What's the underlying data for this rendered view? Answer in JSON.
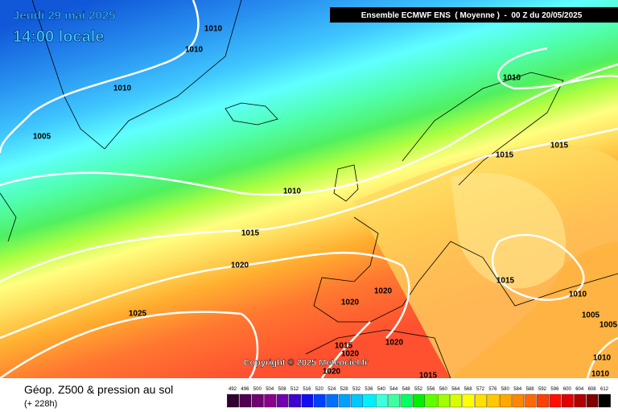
{
  "header": {
    "date": "Jeudi 29 mai 2025",
    "time": "14:00 locale",
    "model": "Ensemble ECMWF ENS  ( Moyenne )  -  00 Z du 20/05/2025"
  },
  "copyright": "Copyright © 2025 Meteociel.fr",
  "legend": {
    "title": "Géop. Z500 & pression au sol",
    "lead": "(+ 228h)",
    "scale": [
      492,
      496,
      500,
      504,
      508,
      512,
      516,
      520,
      524,
      528,
      532,
      536,
      540,
      544,
      548,
      552,
      556,
      560,
      564,
      568,
      572,
      576,
      580,
      584,
      588,
      592,
      596,
      600,
      604,
      608,
      612
    ]
  },
  "isobars": {
    "labels": [
      1010,
      1010,
      1010,
      1005,
      1010,
      1015,
      1020,
      1025,
      1020,
      1020,
      1020,
      1015,
      1020,
      1020,
      1015,
      1010,
      1015,
      1015,
      1015,
      1010,
      1005,
      1005,
      1010,
      1010
    ]
  }
}
